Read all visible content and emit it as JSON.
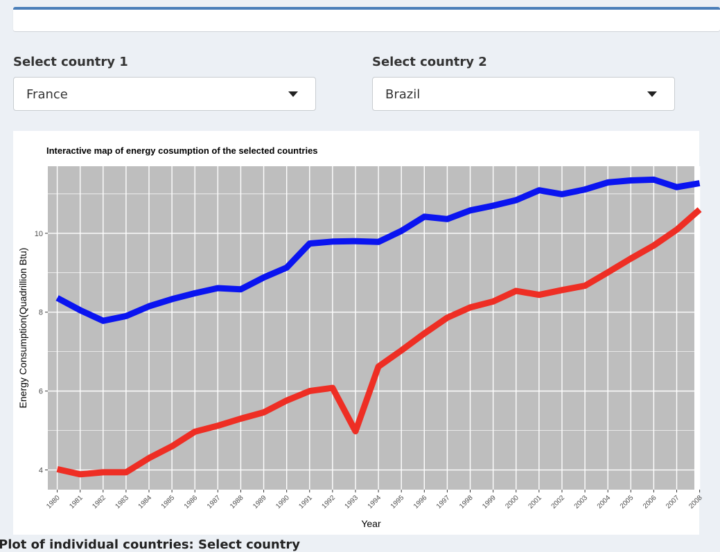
{
  "selectors": {
    "country1": {
      "label": "Select country 1",
      "value": "France"
    },
    "country2": {
      "label": "Select country 2",
      "value": "Brazil"
    }
  },
  "bottom_title": "Plot of individual countries: Select country",
  "colors": {
    "series1": "#0a14f0",
    "series2": "#ee2e24",
    "panel": "#bebebe",
    "grid": "#ffffff"
  },
  "chart_data": {
    "type": "line",
    "title": "Interactive map of energy cosumption of the selected countries",
    "xlabel": "Year",
    "ylabel": "Energy Consumption(Quadrillion Btu)",
    "ylim": [
      3.5,
      11.7
    ],
    "yticks": [
      4,
      6,
      8,
      10
    ],
    "grid": true,
    "x": [
      "1980",
      "1981",
      "1982",
      "1983",
      "1984",
      "1985",
      "1986",
      "1987",
      "1988",
      "1989",
      "1990",
      "1991",
      "1992",
      "1993",
      "1994",
      "1995",
      "1996",
      "1997",
      "1998",
      "1999",
      "2000",
      "2001",
      "2002",
      "2003",
      "2004",
      "2005",
      "2006",
      "2007",
      "2008"
    ],
    "series": [
      {
        "values": [
          8.36,
          8.05,
          7.78,
          7.9,
          8.15,
          8.33,
          8.48,
          8.61,
          8.58,
          8.88,
          9.13,
          9.74,
          9.79,
          9.8,
          9.78,
          10.06,
          10.42,
          10.36,
          10.58,
          10.7,
          10.84,
          11.09,
          10.99,
          11.11,
          11.29,
          11.34,
          11.36,
          11.17,
          11.27
        ]
      },
      {
        "values": [
          4.02,
          3.89,
          3.94,
          3.94,
          4.3,
          4.6,
          4.97,
          5.12,
          5.3,
          5.46,
          5.76,
          6.0,
          6.08,
          4.98,
          6.62,
          7.03,
          7.46,
          7.86,
          8.12,
          8.27,
          8.54,
          8.44,
          8.56,
          8.67,
          9.01,
          9.36,
          9.69,
          10.09,
          10.6
        ]
      }
    ]
  }
}
